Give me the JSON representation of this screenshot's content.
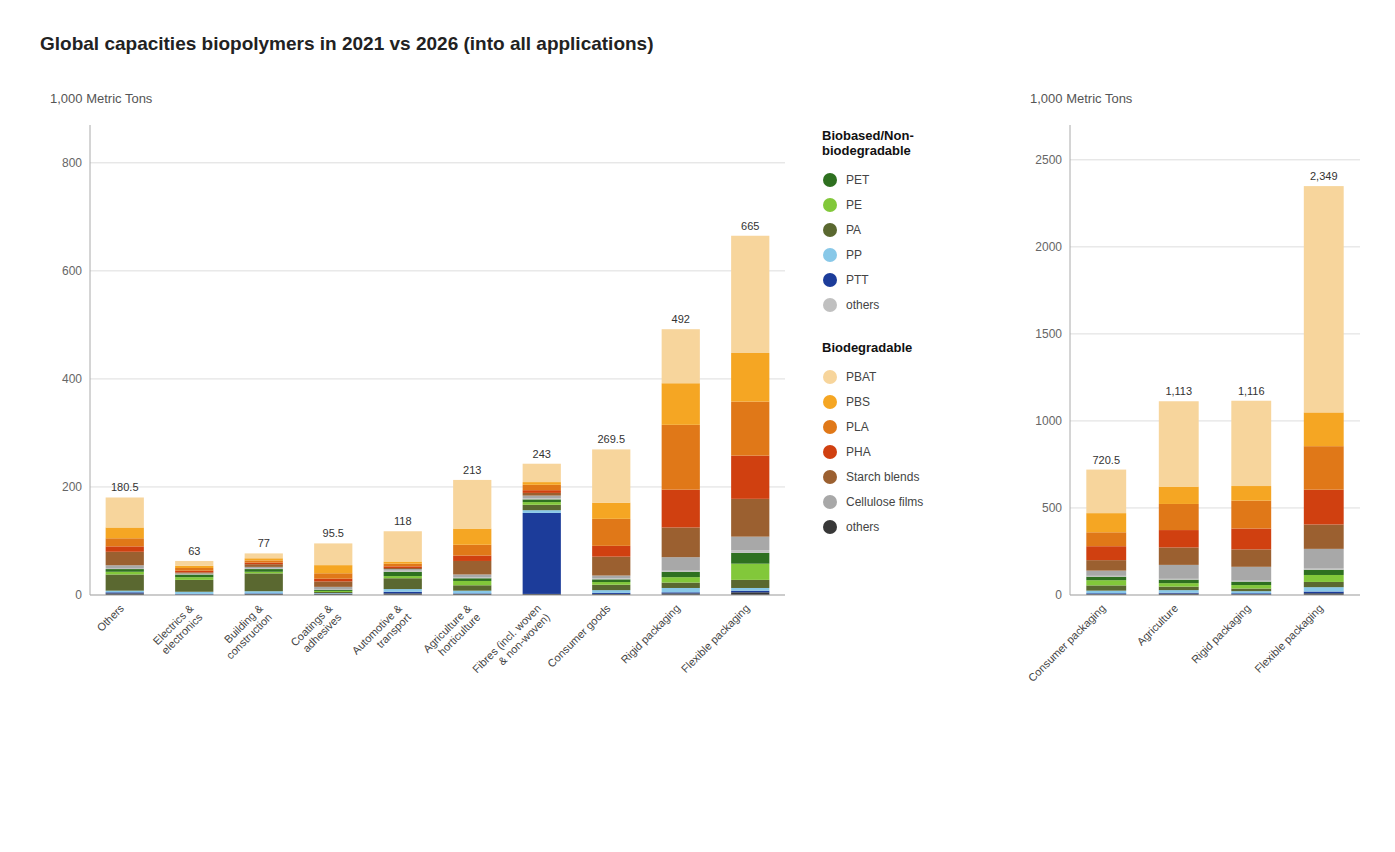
{
  "chart_data": [
    {
      "type": "bar",
      "stacked": true,
      "title": "Global capacities biopolymers in 2021 vs 2026 (into all applications)",
      "ylabel": "1,000 Metric Tons",
      "grid": true,
      "legend": "right",
      "annotations": [
        "Biobased/Non-\nbiodegradable",
        "Biodegradable"
      ],
      "categories": [
        "Others",
        "Electrics &\nelectronics",
        "Building &\nconstruction",
        "Coatings &\nadhesives",
        "Automotive &\ntransport",
        "Agriculture &\nhorticulture",
        "Fibres (incl. woven\n& non-woven)",
        "Consumer goods",
        "Rigid packaging",
        "Flexible packaging"
      ],
      "series": [
        {
          "name": "others",
          "color": "#383838",
          "values": [
            3,
            1,
            2,
            2.010526315789474,
            3,
            2,
            2,
            2,
            3,
            5
          ]
        },
        {
          "name": "PTT",
          "color": "#1C3C9A",
          "values": [
            2,
            1,
            1,
            0.502631578947368,
            3,
            1,
            150,
            2,
            2,
            3
          ]
        },
        {
          "name": "PP",
          "color": "#88C8E8",
          "values": [
            3,
            4,
            4,
            1.005263157894737,
            5,
            5,
            5,
            5,
            8,
            5
          ]
        },
        {
          "name": "PA",
          "color": "#5A6830",
          "values": [
            30,
            22,
            33,
            2.010526315789474,
            20,
            10,
            10,
            10,
            10,
            15
          ]
        },
        {
          "name": "PE",
          "color": "#82C83A",
          "values": [
            5,
            5,
            3,
            2.010526315789474,
            4,
            8,
            5,
            5,
            10,
            30
          ]
        },
        {
          "name": "PET",
          "color": "#2E7020",
          "values": [
            5,
            5,
            5,
            2.010526315789474,
            8,
            5,
            5,
            5,
            10,
            20
          ]
        },
        {
          "name": "others",
          "color": "#C0C0C0",
          "values": [
            2,
            1,
            1,
            0.502631578947368,
            2,
            2,
            2,
            2,
            2,
            5
          ]
        },
        {
          "name": "Cellulose films",
          "color": "#A8A8A8",
          "values": [
            5,
            1,
            3,
            5.026315789473684,
            3,
            5,
            5,
            5,
            25,
            25
          ]
        },
        {
          "name": "Starch blends",
          "color": "#9B6030",
          "values": [
            25,
            2,
            5,
            10.05263157894737,
            2,
            25,
            5,
            35,
            55,
            70
          ]
        },
        {
          "name": "PHA",
          "color": "#D04010",
          "values": [
            10,
            3,
            3,
            5.026315789473684,
            3,
            10,
            5,
            20,
            70,
            80
          ]
        },
        {
          "name": "PLA",
          "color": "#E07818",
          "values": [
            15,
            5,
            4,
            10.05263157894737,
            5,
            20,
            10,
            50,
            120,
            100
          ]
        },
        {
          "name": "PBS",
          "color": "#F5A623",
          "values": [
            20,
            4,
            4,
            15.07894736842105,
            4,
            30,
            5,
            30,
            77,
            90
          ]
        },
        {
          "name": "PBAT",
          "color": "#F7D59C",
          "values": [
            55.5,
            9,
            9,
            40.21052631578947,
            56,
            90,
            34,
            98.5,
            100,
            217
          ]
        }
      ],
      "totals": [
        180.5,
        63,
        77,
        95.5,
        118,
        213,
        243,
        269.5,
        492,
        665
      ],
      "ylim": [
        0,
        870
      ],
      "yticks": [
        0,
        200,
        400,
        600,
        800
      ]
    },
    {
      "type": "bar",
      "stacked": true,
      "ylabel": "1,000 Metric Tons",
      "grid": true,
      "categories": [
        "Consumer packaging",
        "Agriculture",
        "Rigid packaging",
        "Flexible packaging"
      ],
      "series": [
        {
          "color": "#383838",
          "values": [
            5.003472222222222,
            8,
            5,
            10
          ]
        },
        {
          "color": "#1C3C9A",
          "values": [
            5.003472222222222,
            5,
            5,
            10
          ]
        },
        {
          "color": "#88C8E8",
          "values": [
            15.010416666666666,
            15,
            12,
            25
          ]
        },
        {
          "color": "#5A6830",
          "values": [
            30.020833333333332,
            20,
            15,
            30
          ]
        },
        {
          "color": "#82C83A",
          "values": [
            30.020833333333332,
            20,
            20,
            40
          ]
        },
        {
          "color": "#2E7020",
          "values": [
            20.01388888888889,
            20,
            20,
            30
          ]
        },
        {
          "color": "#C0C0C0",
          "values": [
            5.003472222222222,
            5,
            5,
            10
          ]
        },
        {
          "color": "#A8A8A8",
          "values": [
            30.020833333333332,
            80,
            80,
            110
          ]
        },
        {
          "color": "#9B6030",
          "values": [
            60.041666666666664,
            100,
            100,
            140
          ]
        },
        {
          "color": "#D04010",
          "values": [
            80.05555555555556,
            100,
            120,
            200
          ]
        },
        {
          "color": "#E07818",
          "values": [
            80.05555555555556,
            150,
            160,
            250
          ]
        },
        {
          "color": "#F5A623",
          "values": [
            110.07638888888889,
            100,
            84,
            194
          ]
        },
        {
          "color": "#F7D59C",
          "values": [
            250.17361111111111,
            490,
            490,
            1300
          ]
        }
      ],
      "totals": [
        720.5,
        1113,
        1116,
        2349
      ],
      "total_labels": [
        "720.5",
        "1,113",
        "1,116",
        "2,349"
      ],
      "ylim": [
        0,
        2700
      ],
      "yticks": [
        0,
        500,
        1000,
        1500,
        2000,
        2500
      ]
    }
  ]
}
